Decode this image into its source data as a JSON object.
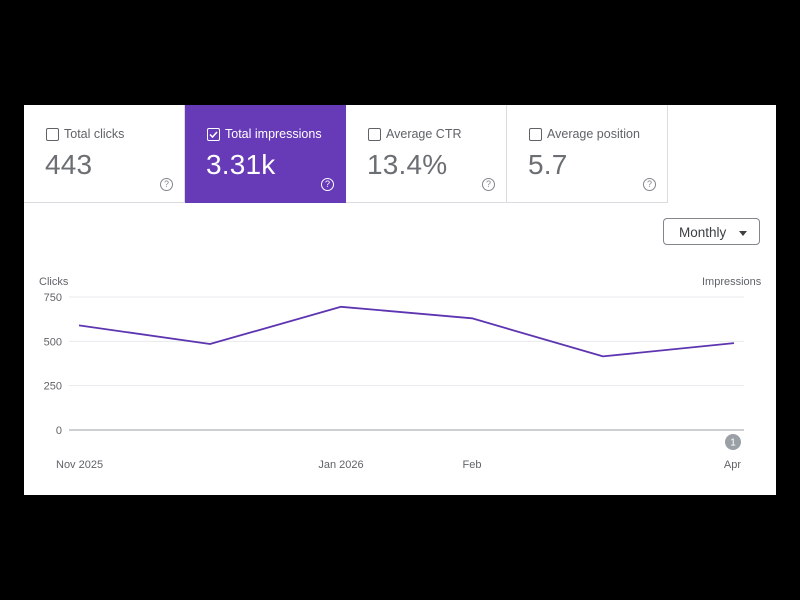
{
  "metrics": [
    {
      "label": "Total clicks",
      "value": "443",
      "checked": false
    },
    {
      "label": "Total impressions",
      "value": "3.31k",
      "checked": true
    },
    {
      "label": "Average CTR",
      "value": "13.4%",
      "checked": false
    },
    {
      "label": "Average position",
      "value": "5.7",
      "checked": false
    }
  ],
  "help_glyph": "?",
  "period_select": {
    "value": "Monthly"
  },
  "colors": {
    "accent": "#673ab7",
    "line": "#5e35b1"
  },
  "annotation_badge": "1",
  "chart_data": {
    "type": "line",
    "left_axis_label": "Clicks",
    "right_axis_label": "Impressions",
    "x_ticks": [
      {
        "label": "Nov 2025",
        "at": "2025-11"
      },
      {
        "label": "Jan 2026",
        "at": "2026-01"
      },
      {
        "label": "Feb",
        "at": "2026-02"
      },
      {
        "label": "Apr",
        "at": "2026-04"
      }
    ],
    "y_ticks": [
      0,
      250,
      500,
      750
    ],
    "ylim": [
      0,
      750
    ],
    "series": [
      {
        "points": [
          {
            "x": "2025-11",
            "y": 590
          },
          {
            "x": "2025-12",
            "y": 485
          },
          {
            "x": "2026-01",
            "y": 695
          },
          {
            "x": "2026-02",
            "y": 630
          },
          {
            "x": "2026-03",
            "y": 415
          },
          {
            "x": "2026-04",
            "y": 490
          }
        ]
      }
    ],
    "grid": true
  }
}
